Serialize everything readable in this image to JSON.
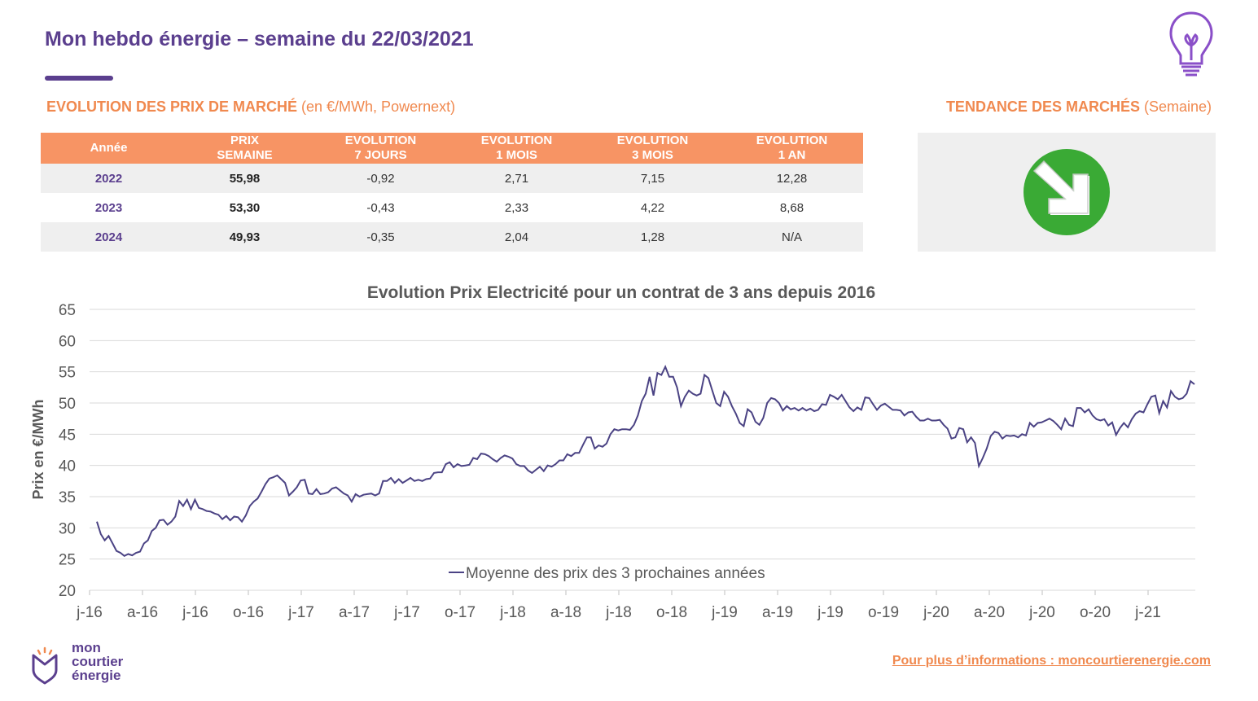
{
  "header": {
    "title": "Mon hebdo énergie – semaine du 22/03/2021"
  },
  "left_section": {
    "title_bold": "EVOLUTION DES PRIX DE MARCHÉ",
    "title_rest": " (en €/MWh, Powernext)"
  },
  "right_section": {
    "title_bold": "TENDANCE DES MARCHÉS",
    "title_rest": " (Semaine)",
    "trend": "down-right-arrow",
    "trend_color": "#3aaa35"
  },
  "table": {
    "headers": [
      {
        "l1": "Année",
        "l2": ""
      },
      {
        "l1": "PRIX",
        "l2": "SEMAINE"
      },
      {
        "l1": "EVOLUTION",
        "l2": "7 JOURS"
      },
      {
        "l1": "EVOLUTION",
        "l2": "1 MOIS"
      },
      {
        "l1": "EVOLUTION",
        "l2": "3 MOIS"
      },
      {
        "l1": "EVOLUTION",
        "l2": "1 AN"
      }
    ],
    "rows": [
      {
        "year": "2022",
        "price": "55,98",
        "e7": "-0,92",
        "e1m": "2,71",
        "e3m": "7,15",
        "e1y": "12,28"
      },
      {
        "year": "2023",
        "price": "53,30",
        "e7": "-0,43",
        "e1m": "2,33",
        "e3m": "4,22",
        "e1y": "8,68"
      },
      {
        "year": "2024",
        "price": "49,93",
        "e7": "-0,35",
        "e1m": "2,04",
        "e3m": "1,28",
        "e1y": "N/A"
      }
    ]
  },
  "chart_data": {
    "type": "line",
    "title": "Evolution Prix Electricité pour un contrat de 3 ans depuis 2016",
    "xlabel": "",
    "ylabel": "Prix en €/MWh",
    "ylim": [
      20,
      65
    ],
    "yticks": [
      20,
      25,
      30,
      35,
      40,
      45,
      50,
      55,
      60,
      65
    ],
    "grid": true,
    "legend": "inside-bottom-center",
    "line_color": "#4b4384",
    "xticks": [
      "j-16",
      "a-16",
      "j-16",
      "o-16",
      "j-17",
      "a-17",
      "j-17",
      "o-17",
      "j-18",
      "a-18",
      "j-18",
      "o-18",
      "j-19",
      "a-19",
      "j-19",
      "o-19",
      "j-20",
      "a-20",
      "j-20",
      "o-20",
      "j-21"
    ],
    "series": [
      {
        "name": "Moyenne des prix des 3 prochaines années",
        "values": [
          31.0,
          29.0,
          28.0,
          28.7,
          27.5,
          26.3,
          26.0,
          25.5,
          25.8,
          25.6,
          26.0,
          26.2,
          27.5,
          28.0,
          29.5,
          30.0,
          31.2,
          31.3,
          30.5,
          31.0,
          31.8,
          34.3,
          33.5,
          34.5,
          33.0,
          34.5,
          33.2,
          33.0,
          32.7,
          32.6,
          32.3,
          32.1,
          31.4,
          31.9,
          31.2,
          31.8,
          31.7,
          31.0,
          32.0,
          33.5,
          34.2,
          34.7,
          35.8,
          37.0,
          37.9,
          38.1,
          38.4,
          37.8,
          37.2,
          35.2,
          35.8,
          36.5,
          37.6,
          37.7,
          35.5,
          35.4,
          36.2,
          35.4,
          35.5,
          35.7,
          36.3,
          36.5,
          36.0,
          35.5,
          35.2,
          34.2,
          35.4,
          35.0,
          35.3,
          35.4,
          35.5,
          35.2,
          35.5,
          37.5,
          37.5,
          38.0,
          37.2,
          37.8,
          37.2,
          37.6,
          38.0,
          37.5,
          37.7,
          37.5,
          37.8,
          37.9,
          38.8,
          38.9,
          38.9,
          40.2,
          40.5,
          39.7,
          40.2,
          39.9,
          40.0,
          40.1,
          41.2,
          41.0,
          41.9,
          41.8,
          41.5,
          41.0,
          40.6,
          41.2,
          41.6,
          41.4,
          41.1,
          40.2,
          39.9,
          39.9,
          39.2,
          38.8,
          39.3,
          39.8,
          39.1,
          40.0,
          39.8,
          40.2,
          40.8,
          40.8,
          41.8,
          41.5,
          42.0,
          42.0,
          43.3,
          44.5,
          44.5,
          42.7,
          43.2,
          43.0,
          43.5,
          45.0,
          45.8,
          45.6,
          45.8,
          45.8,
          45.7,
          46.5,
          48.0,
          50.3,
          51.5,
          54.2,
          51.2,
          54.8,
          54.5,
          55.8,
          54.2,
          54.2,
          52.5,
          49.5,
          51.0,
          52.0,
          51.5,
          51.2,
          51.5,
          54.5,
          54.0,
          52.0,
          50.0,
          49.5,
          51.8,
          51.0,
          49.5,
          48.3,
          46.8,
          46.3,
          49.0,
          48.5,
          47.0,
          46.5,
          47.6,
          50.0,
          50.8,
          50.6,
          50.0,
          48.8,
          49.5,
          49.0,
          49.2,
          48.8,
          49.2,
          48.8,
          49.1,
          48.7,
          48.9,
          49.8,
          49.7,
          51.3,
          51.0,
          50.6,
          51.3,
          50.3,
          49.3,
          48.7,
          49.3,
          48.9,
          50.9,
          50.8,
          49.8,
          48.9,
          49.6,
          49.9,
          49.4,
          48.9,
          48.9,
          48.8,
          48.0,
          48.5,
          48.6,
          47.8,
          47.2,
          47.2,
          47.5,
          47.2,
          47.2,
          47.3,
          46.5,
          45.9,
          44.3,
          44.5,
          46.0,
          45.8,
          43.7,
          44.5,
          43.6,
          39.9,
          41.2,
          42.7,
          44.7,
          45.4,
          45.2,
          44.3,
          44.8,
          44.7,
          44.8,
          44.5,
          45.0,
          44.8,
          46.8,
          46.2,
          46.8,
          46.9,
          47.2,
          47.5,
          47.1,
          46.5,
          45.8,
          47.5,
          46.5,
          46.3,
          49.2,
          49.2,
          48.5,
          49.0,
          48.0,
          47.4,
          47.2,
          47.4,
          46.4,
          46.9,
          44.9,
          46.0,
          46.8,
          46.1,
          47.4,
          48.3,
          48.7,
          48.5,
          49.8,
          51.0,
          51.2,
          48.4,
          50.3,
          49.3,
          51.9,
          51.0,
          50.6,
          50.8,
          51.5,
          53.5,
          53.0
        ]
      }
    ]
  },
  "logo": {
    "lines": [
      "mon",
      "courtier",
      "énergie"
    ],
    "color": "#5b3f8e"
  },
  "footer": {
    "link_text": "Pour plus d’informations : moncourtierenergie.com"
  }
}
